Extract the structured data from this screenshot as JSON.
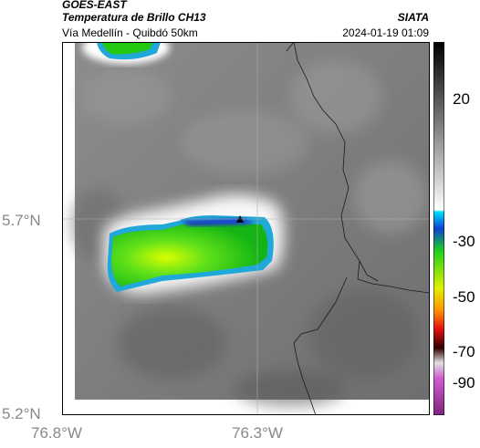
{
  "header": {
    "source": "GOES-EAST",
    "product": "Temperatura de Brillo CH13",
    "organization": "SIATA",
    "subtitle": "Vía Medellín - Quibdó 50km",
    "timestamp": "2024-01-19 01:09"
  },
  "axes": {
    "lat_ticks": [
      "5.7°N",
      "5.2°N"
    ],
    "lon_ticks": [
      "76.8°W",
      "76.3°W"
    ]
  },
  "colorbar": {
    "ticks": [
      "20",
      "-30",
      "-50",
      "-70",
      "-90"
    ]
  },
  "colors": {
    "background_gray": "#8a8a8a",
    "cold_cloud_green": "#22c810",
    "cloud_edge_blue": "#1fa8d8"
  }
}
